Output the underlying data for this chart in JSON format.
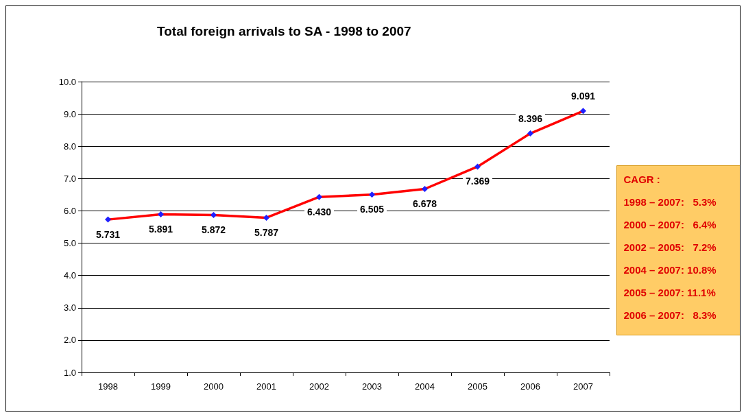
{
  "chart_data": {
    "type": "line",
    "title": "Total foreign arrivals to SA - 1998 to 2007",
    "categories": [
      "1998",
      "1999",
      "2000",
      "2001",
      "2002",
      "2003",
      "2004",
      "2005",
      "2006",
      "2007"
    ],
    "series": [
      {
        "color": "#ff0000",
        "values": [
          5.731,
          5.891,
          5.872,
          5.787,
          6.43,
          6.505,
          6.678,
          7.369,
          8.396,
          9.091
        ],
        "value_labels": [
          "5.731",
          "5.891",
          "5.872",
          "5.787",
          "6.430",
          "6.505",
          "6.678",
          "7.369",
          "8.396",
          "9.091"
        ]
      }
    ],
    "ylim": [
      1,
      10
    ],
    "yticks": [
      {
        "value": 1,
        "label": "1.0"
      },
      {
        "value": 2,
        "label": "2.0"
      },
      {
        "value": 3,
        "label": "3.0"
      },
      {
        "value": 4,
        "label": "4.0"
      },
      {
        "value": 5,
        "label": "5.0"
      },
      {
        "value": 6,
        "label": "6.0"
      },
      {
        "value": 7,
        "label": "7.0"
      },
      {
        "value": 8,
        "label": "8.0"
      },
      {
        "value": 9,
        "label": "9.0"
      },
      {
        "value": 10,
        "label": "10.0"
      }
    ],
    "grid": "y",
    "marker": "diamond",
    "line_style": "solid",
    "annotations": [
      "CAGR :",
      "1998 – 2007:   5.3%",
      "2000 – 2007:   6.4%",
      "2002 – 2005:   7.2%",
      "2004 – 2007: 10.8%",
      "2005 – 2007: 11.1%",
      "2006 – 2007:   8.3%"
    ]
  }
}
